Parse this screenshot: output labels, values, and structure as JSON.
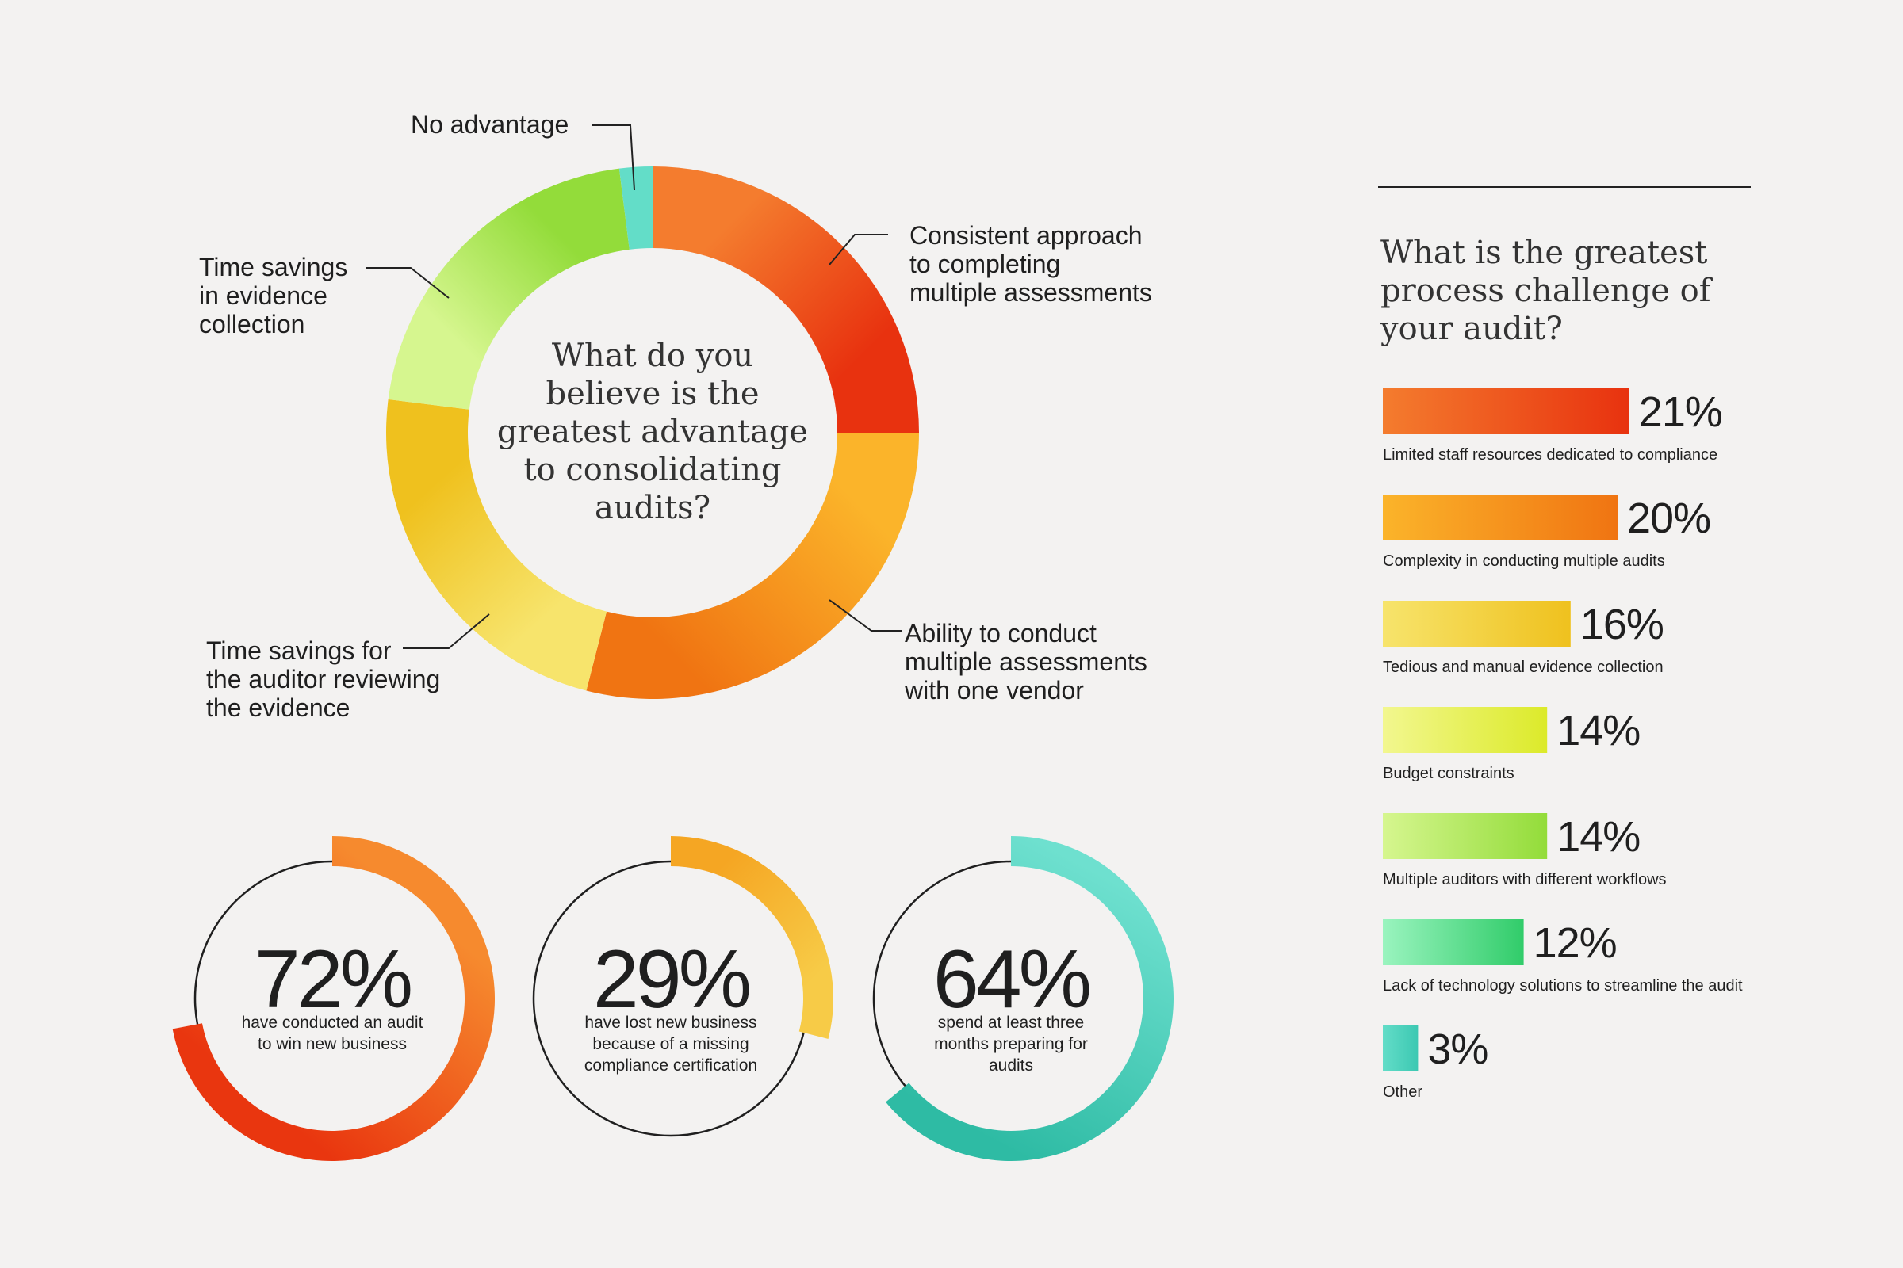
{
  "chart_data": [
    {
      "type": "pie",
      "variant": "donut",
      "title": "What do you believe is the greatest advantage to consolidating audits?",
      "title_lines": [
        "What do you",
        "believe is the",
        "greatest advantage",
        "to consolidating",
        "audits?"
      ],
      "slices": [
        {
          "label": "Consistent approach to completing multiple assessments",
          "label_lines": [
            "Consistent approach",
            "to completing",
            "multiple assessments"
          ],
          "value": 25,
          "colors": [
            "#f47c2e",
            "#e8320f"
          ]
        },
        {
          "label": "Ability to conduct multiple assessments with one vendor",
          "label_lines": [
            "Ability to conduct",
            "multiple assessments",
            "with one vendor"
          ],
          "value": 29,
          "colors": [
            "#fbb42a",
            "#f07412"
          ]
        },
        {
          "label": "Time savings for the auditor reviewing the evidence",
          "label_lines": [
            "Time savings for",
            "the auditor reviewing",
            "the evidence"
          ],
          "value": 23,
          "colors": [
            "#f7e46c",
            "#efc11e"
          ]
        },
        {
          "label": "Time savings in evidence collection",
          "label_lines": [
            "Time savings",
            "in evidence",
            "collection"
          ],
          "value": 21,
          "colors": [
            "#d6f68f",
            "#93dc3a"
          ]
        },
        {
          "label": "No advantage",
          "label_lines": [
            "No advantage"
          ],
          "value": 2,
          "colors": [
            "#63ddc8",
            "#63ddc8"
          ]
        }
      ]
    },
    {
      "type": "bar",
      "orientation": "horizontal",
      "title": "What is the greatest process challenge of your audit?",
      "title_lines": [
        "What is the greatest",
        "process challenge of",
        "your audit?"
      ],
      "categories": [
        "Limited staff resources dedicated to compliance",
        "Complexity in conducting multiple audits",
        "Tedious and manual evidence collection",
        "Budget constraints",
        "Multiple auditors with different workflows",
        "Lack of technology solutions to streamline the audit",
        "Other"
      ],
      "values": [
        21,
        20,
        16,
        14,
        14,
        12,
        3
      ],
      "value_labels": [
        "21%",
        "20%",
        "16%",
        "14%",
        "14%",
        "12%",
        "3%"
      ],
      "colors": [
        [
          "#f47c2e",
          "#e8320f"
        ],
        [
          "#fbb42a",
          "#f07412"
        ],
        [
          "#f7e46c",
          "#efc11e"
        ],
        [
          "#f2f78f",
          "#dcea2a"
        ],
        [
          "#d6f68f",
          "#93dc3a"
        ],
        [
          "#9af4bf",
          "#31cc6a"
        ],
        [
          "#63ddc8",
          "#3cc8b2"
        ]
      ]
    },
    {
      "type": "pie",
      "variant": "progress-ring",
      "items": [
        {
          "value": 72,
          "label": "72%",
          "caption_lines": [
            "have conducted an audit",
            "to win new business"
          ],
          "colors": [
            "#e9360f",
            "#f68a2e"
          ]
        },
        {
          "value": 29,
          "label": "29%",
          "caption_lines": [
            "have lost new business",
            "because of a missing",
            "compliance certification"
          ],
          "colors": [
            "#f7cb47",
            "#f5a623"
          ]
        },
        {
          "value": 64,
          "label": "64%",
          "caption_lines": [
            "spend at least three",
            "months preparing for",
            "audits"
          ],
          "colors": [
            "#2ebba4",
            "#6ee0cf"
          ]
        }
      ]
    }
  ]
}
